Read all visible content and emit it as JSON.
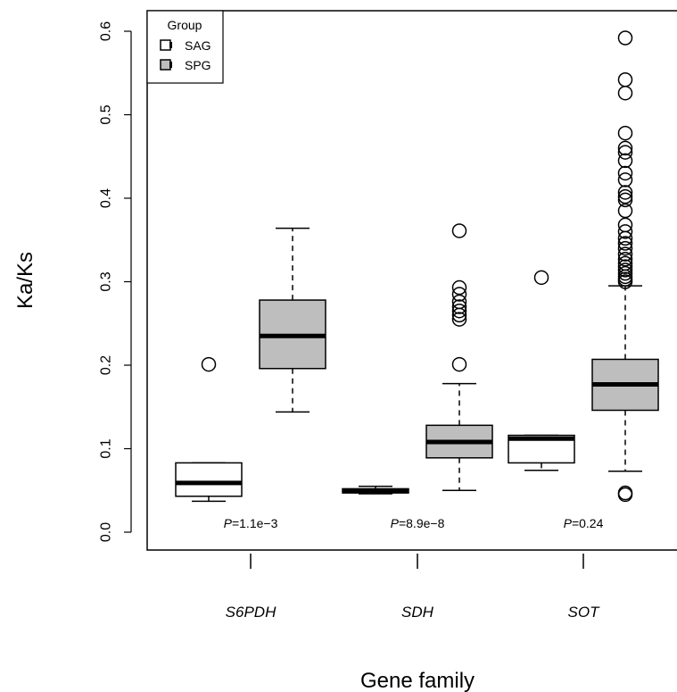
{
  "chart_data": {
    "type": "boxplot",
    "xlabel": "Gene family",
    "ylabel": "Ka/Ks",
    "ylim": [
      0,
      0.6
    ],
    "yticks": [
      "0.0",
      "0.1",
      "0.2",
      "0.3",
      "0.4",
      "0.5",
      "0.6"
    ],
    "categories": [
      "S6PDH",
      "SDH",
      "SOT"
    ],
    "legend": {
      "title": "Group",
      "position": "top-left",
      "entries": [
        {
          "name": "SAG",
          "color": "#ffffff"
        },
        {
          "name": "SPG",
          "color": "#bebebe"
        }
      ]
    },
    "series": [
      {
        "name": "SAG",
        "color": "#ffffff",
        "boxes": [
          {
            "category": "S6PDH",
            "whisker_low": 0.037,
            "q1": 0.043,
            "median": 0.059,
            "q3": 0.083,
            "whisker_high": 0.083,
            "outliers": [
              0.201
            ]
          },
          {
            "category": "SDH",
            "whisker_low": 0.046,
            "q1": 0.047,
            "median": 0.049,
            "q3": 0.052,
            "whisker_high": 0.055,
            "outliers": []
          },
          {
            "category": "SOT",
            "whisker_low": 0.074,
            "q1": 0.083,
            "median": 0.112,
            "q3": 0.116,
            "whisker_high": 0.116,
            "outliers": [
              0.305
            ]
          }
        ]
      },
      {
        "name": "SPG",
        "color": "#bebebe",
        "boxes": [
          {
            "category": "S6PDH",
            "whisker_low": 0.144,
            "q1": 0.196,
            "median": 0.235,
            "q3": 0.278,
            "whisker_high": 0.364,
            "outliers": []
          },
          {
            "category": "SDH",
            "whisker_low": 0.05,
            "q1": 0.089,
            "median": 0.108,
            "q3": 0.128,
            "whisker_high": 0.178,
            "outliers": [
              0.201,
              0.255,
              0.26,
              0.265,
              0.27,
              0.276,
              0.285,
              0.293,
              0.361
            ]
          },
          {
            "category": "SOT",
            "whisker_low": 0.073,
            "q1": 0.146,
            "median": 0.177,
            "q3": 0.207,
            "whisker_high": 0.295,
            "outliers": [
              0.045,
              0.047,
              0.3,
              0.303,
              0.306,
              0.31,
              0.314,
              0.318,
              0.322,
              0.327,
              0.333,
              0.34,
              0.346,
              0.352,
              0.36,
              0.368,
              0.385,
              0.398,
              0.402,
              0.407,
              0.422,
              0.43,
              0.445,
              0.455,
              0.46,
              0.478,
              0.526,
              0.542,
              0.592
            ]
          }
        ]
      }
    ],
    "annotations": [
      {
        "category": "S6PDH",
        "prefix": "P",
        "text": "=1.1e−3"
      },
      {
        "category": "SDH",
        "prefix": "P",
        "text": "=8.9e−8"
      },
      {
        "category": "SOT",
        "prefix": "P",
        "text": "=0.24"
      }
    ]
  }
}
